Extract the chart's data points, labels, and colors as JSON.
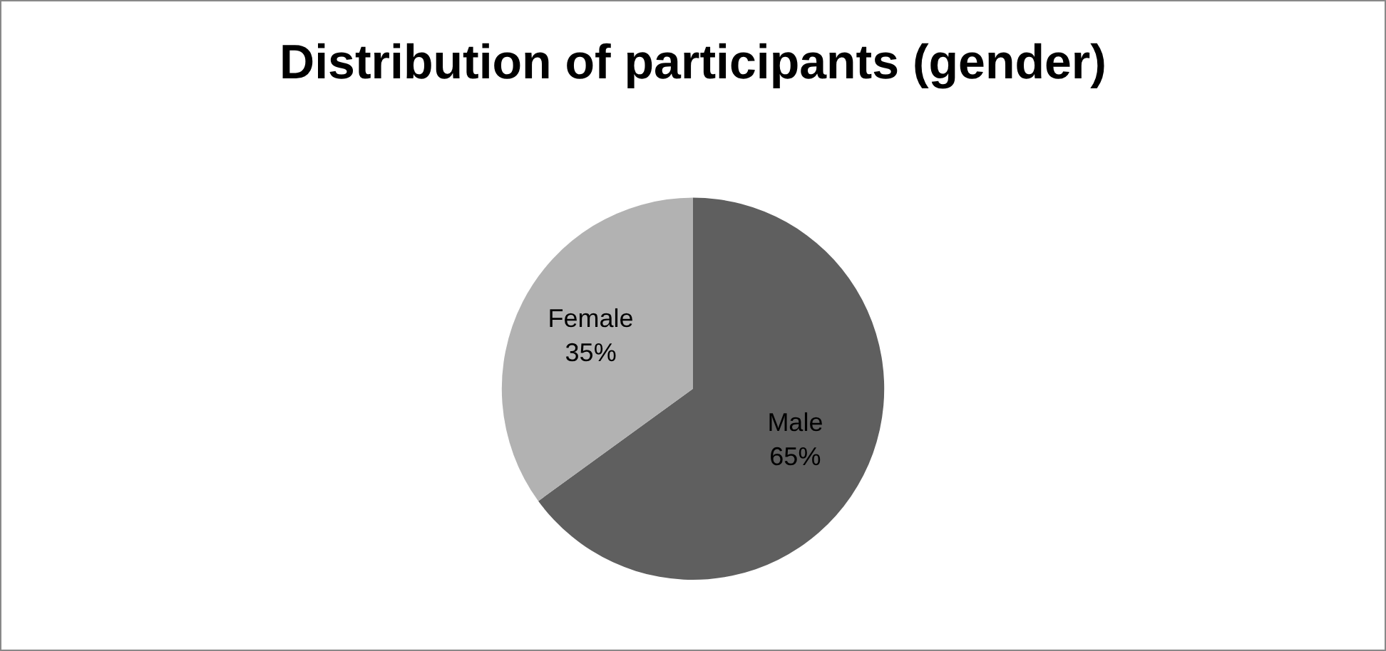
{
  "chart_data": {
    "type": "pie",
    "title": "Distribution of participants (gender)",
    "categories": [
      "Male",
      "Female"
    ],
    "values": [
      65,
      35
    ],
    "value_labels": [
      "65%",
      "35%"
    ],
    "colors": [
      "#5f5f5f",
      "#b2b2b2"
    ],
    "legend": false
  }
}
